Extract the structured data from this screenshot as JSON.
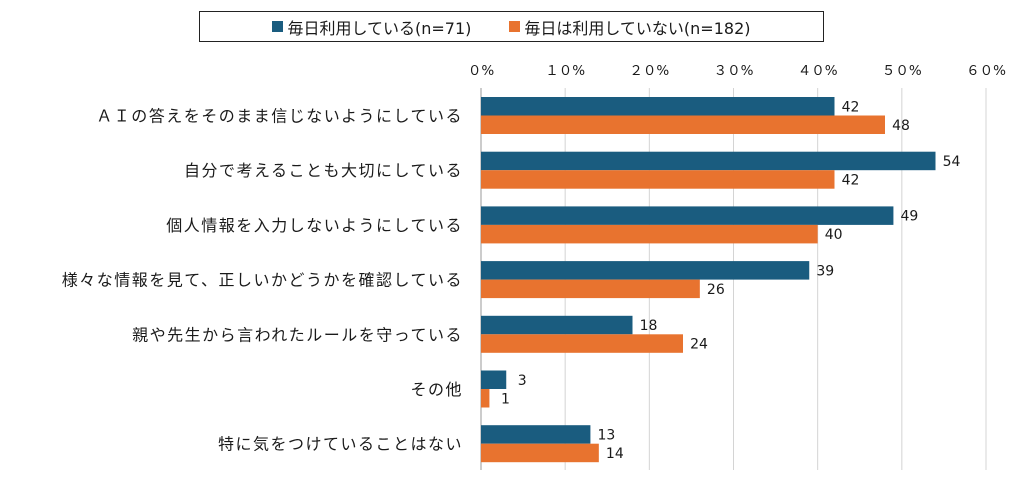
{
  "chart_data": {
    "type": "bar",
    "orientation": "horizontal",
    "categories": [
      "ＡＩの答えをそのまま信じないようにしている",
      "自分で考えることも大切にしている",
      "個人情報を入力しないようにしている",
      "様々な情報を見て、正しいかどうかを確認している",
      "親や先生から言われたルールを守っている",
      "その他",
      "特に気をつけていることはない"
    ],
    "series": [
      {
        "name": "毎日利用している(n=71)",
        "color": "#1a5c7f",
        "values": [
          42,
          54,
          49,
          39,
          18,
          3,
          13
        ]
      },
      {
        "name": "毎日は利用していない(n=182)",
        "color": "#e8732f",
        "values": [
          48,
          42,
          40,
          26,
          24,
          1,
          14
        ]
      }
    ],
    "xlim": [
      0,
      60
    ],
    "x_ticks": [
      0,
      10,
      20,
      30,
      40,
      50,
      60
    ],
    "x_tick_labels": [
      "０%",
      "１０%",
      "２０%",
      "３０%",
      "４０%",
      "５０%",
      "６０%"
    ],
    "grid": "vertical",
    "legend_position": "top",
    "xlabel": "",
    "ylabel": ""
  }
}
